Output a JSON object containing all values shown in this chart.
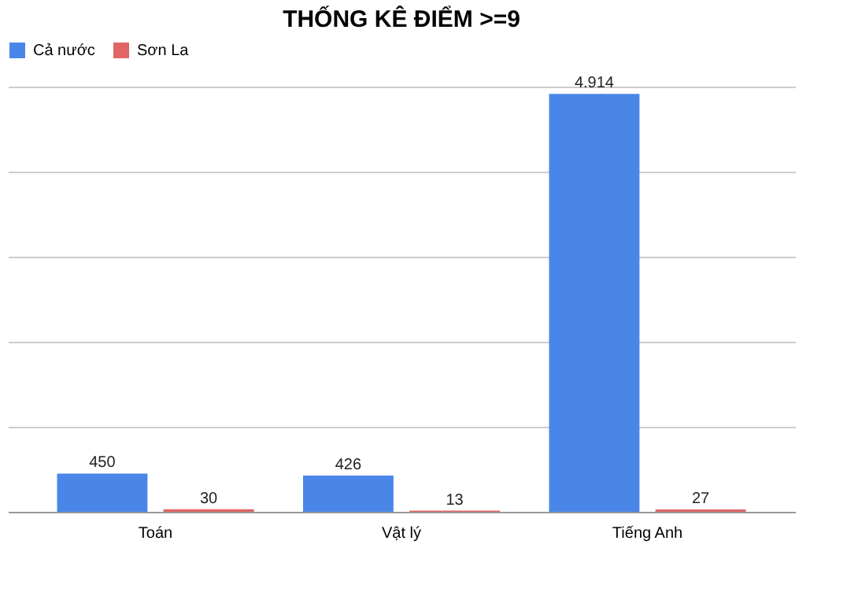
{
  "chart_data": {
    "type": "bar",
    "title": "THỐNG KÊ ĐIỂM >=9",
    "categories": [
      "Toán",
      "Vật lý",
      "Tiếng Anh"
    ],
    "series": [
      {
        "name": "Cả nước",
        "color": "#4a86e8",
        "values": [
          450,
          426,
          4914
        ],
        "value_labels": [
          "450",
          "426",
          "4.914"
        ]
      },
      {
        "name": "Sơn La",
        "color": "#e06666",
        "values": [
          30,
          13,
          27
        ],
        "value_labels": [
          "30",
          "13",
          "27"
        ]
      }
    ],
    "ylim": [
      0,
      5000
    ],
    "yticks": [
      {
        "value": 0,
        "label": null
      },
      {
        "value": 1000,
        "label": null
      },
      {
        "value": 2000,
        "label": null
      },
      {
        "value": 3000,
        "label": null
      },
      {
        "value": 4000,
        "label": null
      },
      {
        "value": 5000,
        "label": null
      }
    ],
    "tick_labels": "x",
    "grid": "y",
    "legend": "top"
  }
}
